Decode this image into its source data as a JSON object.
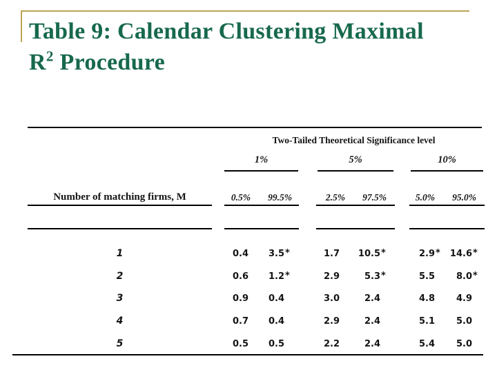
{
  "colors": {
    "title_green": "#17694C",
    "accent_gold": "#BCA351",
    "text_black": "#141414"
  },
  "title": {
    "line1": "Table 9: Calendar Clustering Maximal",
    "line2_base": "R",
    "line2_sup": "2",
    "line2_rest": " Procedure"
  },
  "table": {
    "sig_header": "Two-Tailed Theoretical Significance level",
    "group_labels": [
      "1%",
      "5%",
      "10%"
    ],
    "row_header": "Number of matching firms, M",
    "sub_headers": [
      "0.5%",
      "99.5%",
      "2.5%",
      "97.5%",
      "5.0%",
      "95.0%"
    ],
    "rows": [
      {
        "m": "1",
        "values": [
          "0.4",
          "3.5*",
          "1.7",
          "10.5*",
          "2.9*",
          "14.6*"
        ]
      },
      {
        "m": "2",
        "values": [
          "0.6",
          "1.2*",
          "2.9",
          "5.3*",
          "5.5",
          "8.0*"
        ]
      },
      {
        "m": "3",
        "values": [
          "0.9",
          "0.4",
          "3.0",
          "2.4",
          "4.8",
          "4.9"
        ]
      },
      {
        "m": "4",
        "values": [
          "0.7",
          "0.4",
          "2.9",
          "2.4",
          "5.1",
          "5.0"
        ]
      },
      {
        "m": "5",
        "values": [
          "0.5",
          "0.5",
          "2.2",
          "2.4",
          "5.4",
          "5.0"
        ]
      }
    ]
  }
}
